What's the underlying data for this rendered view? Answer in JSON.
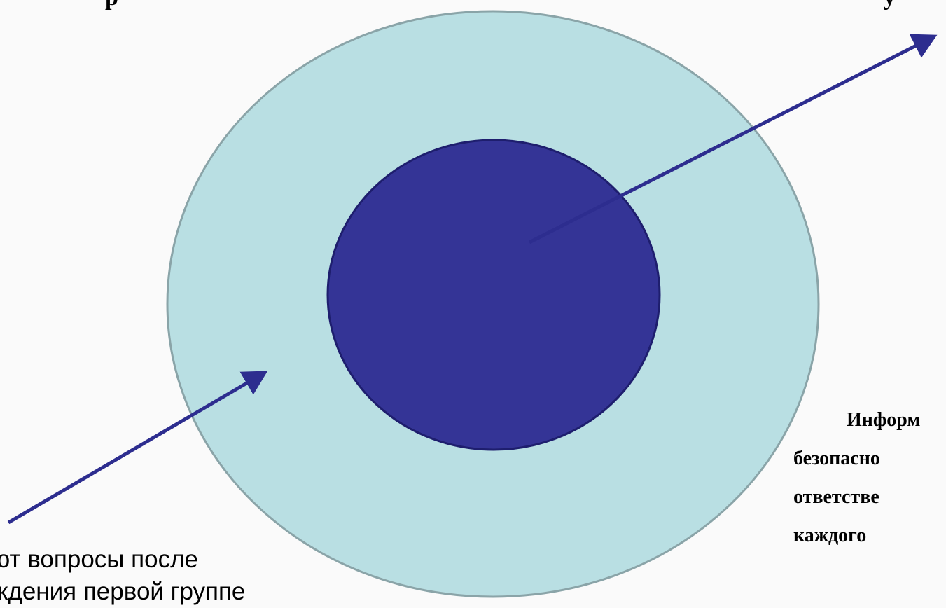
{
  "diagram": {
    "left_caption_lines": [
      "ют вопросы после",
      "ждения первой группе"
    ],
    "right_caption_lines": [
      "Информ",
      "безопасно",
      "ответстве",
      "каждого"
    ],
    "colors": {
      "background": "#fafafa",
      "outer_circle_fill": "#b9dfe3",
      "outer_circle_stroke": "#8aa4a8",
      "inner_circle_fill": "#343496",
      "inner_circle_stroke": "#1e1e6e",
      "arrow": "#2d2d8f",
      "text": "#000000"
    }
  }
}
